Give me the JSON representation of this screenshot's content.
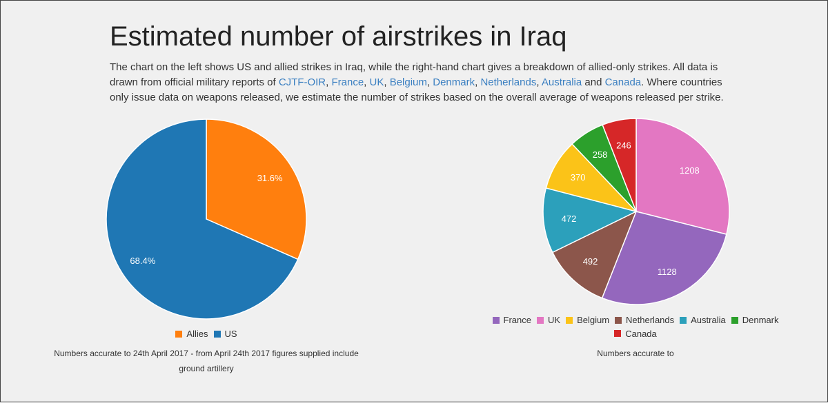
{
  "title": "Estimated number of airstrikes in Iraq",
  "intro": {
    "text1": "The chart on the left shows US and allied strikes in Iraq, while the right-hand chart gives a breakdown of allied-only strikes. All data is drawn from official military reports of ",
    "links": [
      "CJTF-OIR",
      "France",
      "UK",
      "Belgium",
      "Denmark",
      "Netherlands",
      "Australia",
      "Canada"
    ],
    "sep": ", ",
    "and": " and ",
    "text2": ". Where countries only issue data on weapons released, we estimate the number of strikes based on the overall average of weapons released per strike."
  },
  "chart_data": [
    {
      "type": "pie",
      "categories": [
        "Allies",
        "US"
      ],
      "values": [
        31.6,
        68.4
      ],
      "labels": [
        "31.6%",
        "68.4%"
      ],
      "colors": [
        "#ff7f0e",
        "#1f77b4"
      ],
      "legend_position": "bottom",
      "note": "Numbers accurate to 24th April 2017 - from April 24th 2017 figures supplied include ground artillery"
    },
    {
      "type": "pie",
      "categories": [
        "France",
        "UK",
        "Belgium",
        "Netherlands",
        "Australia",
        "Denmark",
        "Canada"
      ],
      "values": [
        1128,
        1208,
        370,
        492,
        472,
        258,
        246
      ],
      "slice_order": [
        "UK",
        "France",
        "Netherlands",
        "Australia",
        "Belgium",
        "Denmark",
        "Canada"
      ],
      "colors": {
        "France": "#9467bd",
        "UK": "#e377c2",
        "Belgium": "#fbc318",
        "Netherlands": "#8c564b",
        "Australia": "#2ca0bb",
        "Denmark": "#2ca02c",
        "Canada": "#d62728"
      },
      "legend_position": "bottom",
      "note": "Numbers accurate to"
    }
  ]
}
